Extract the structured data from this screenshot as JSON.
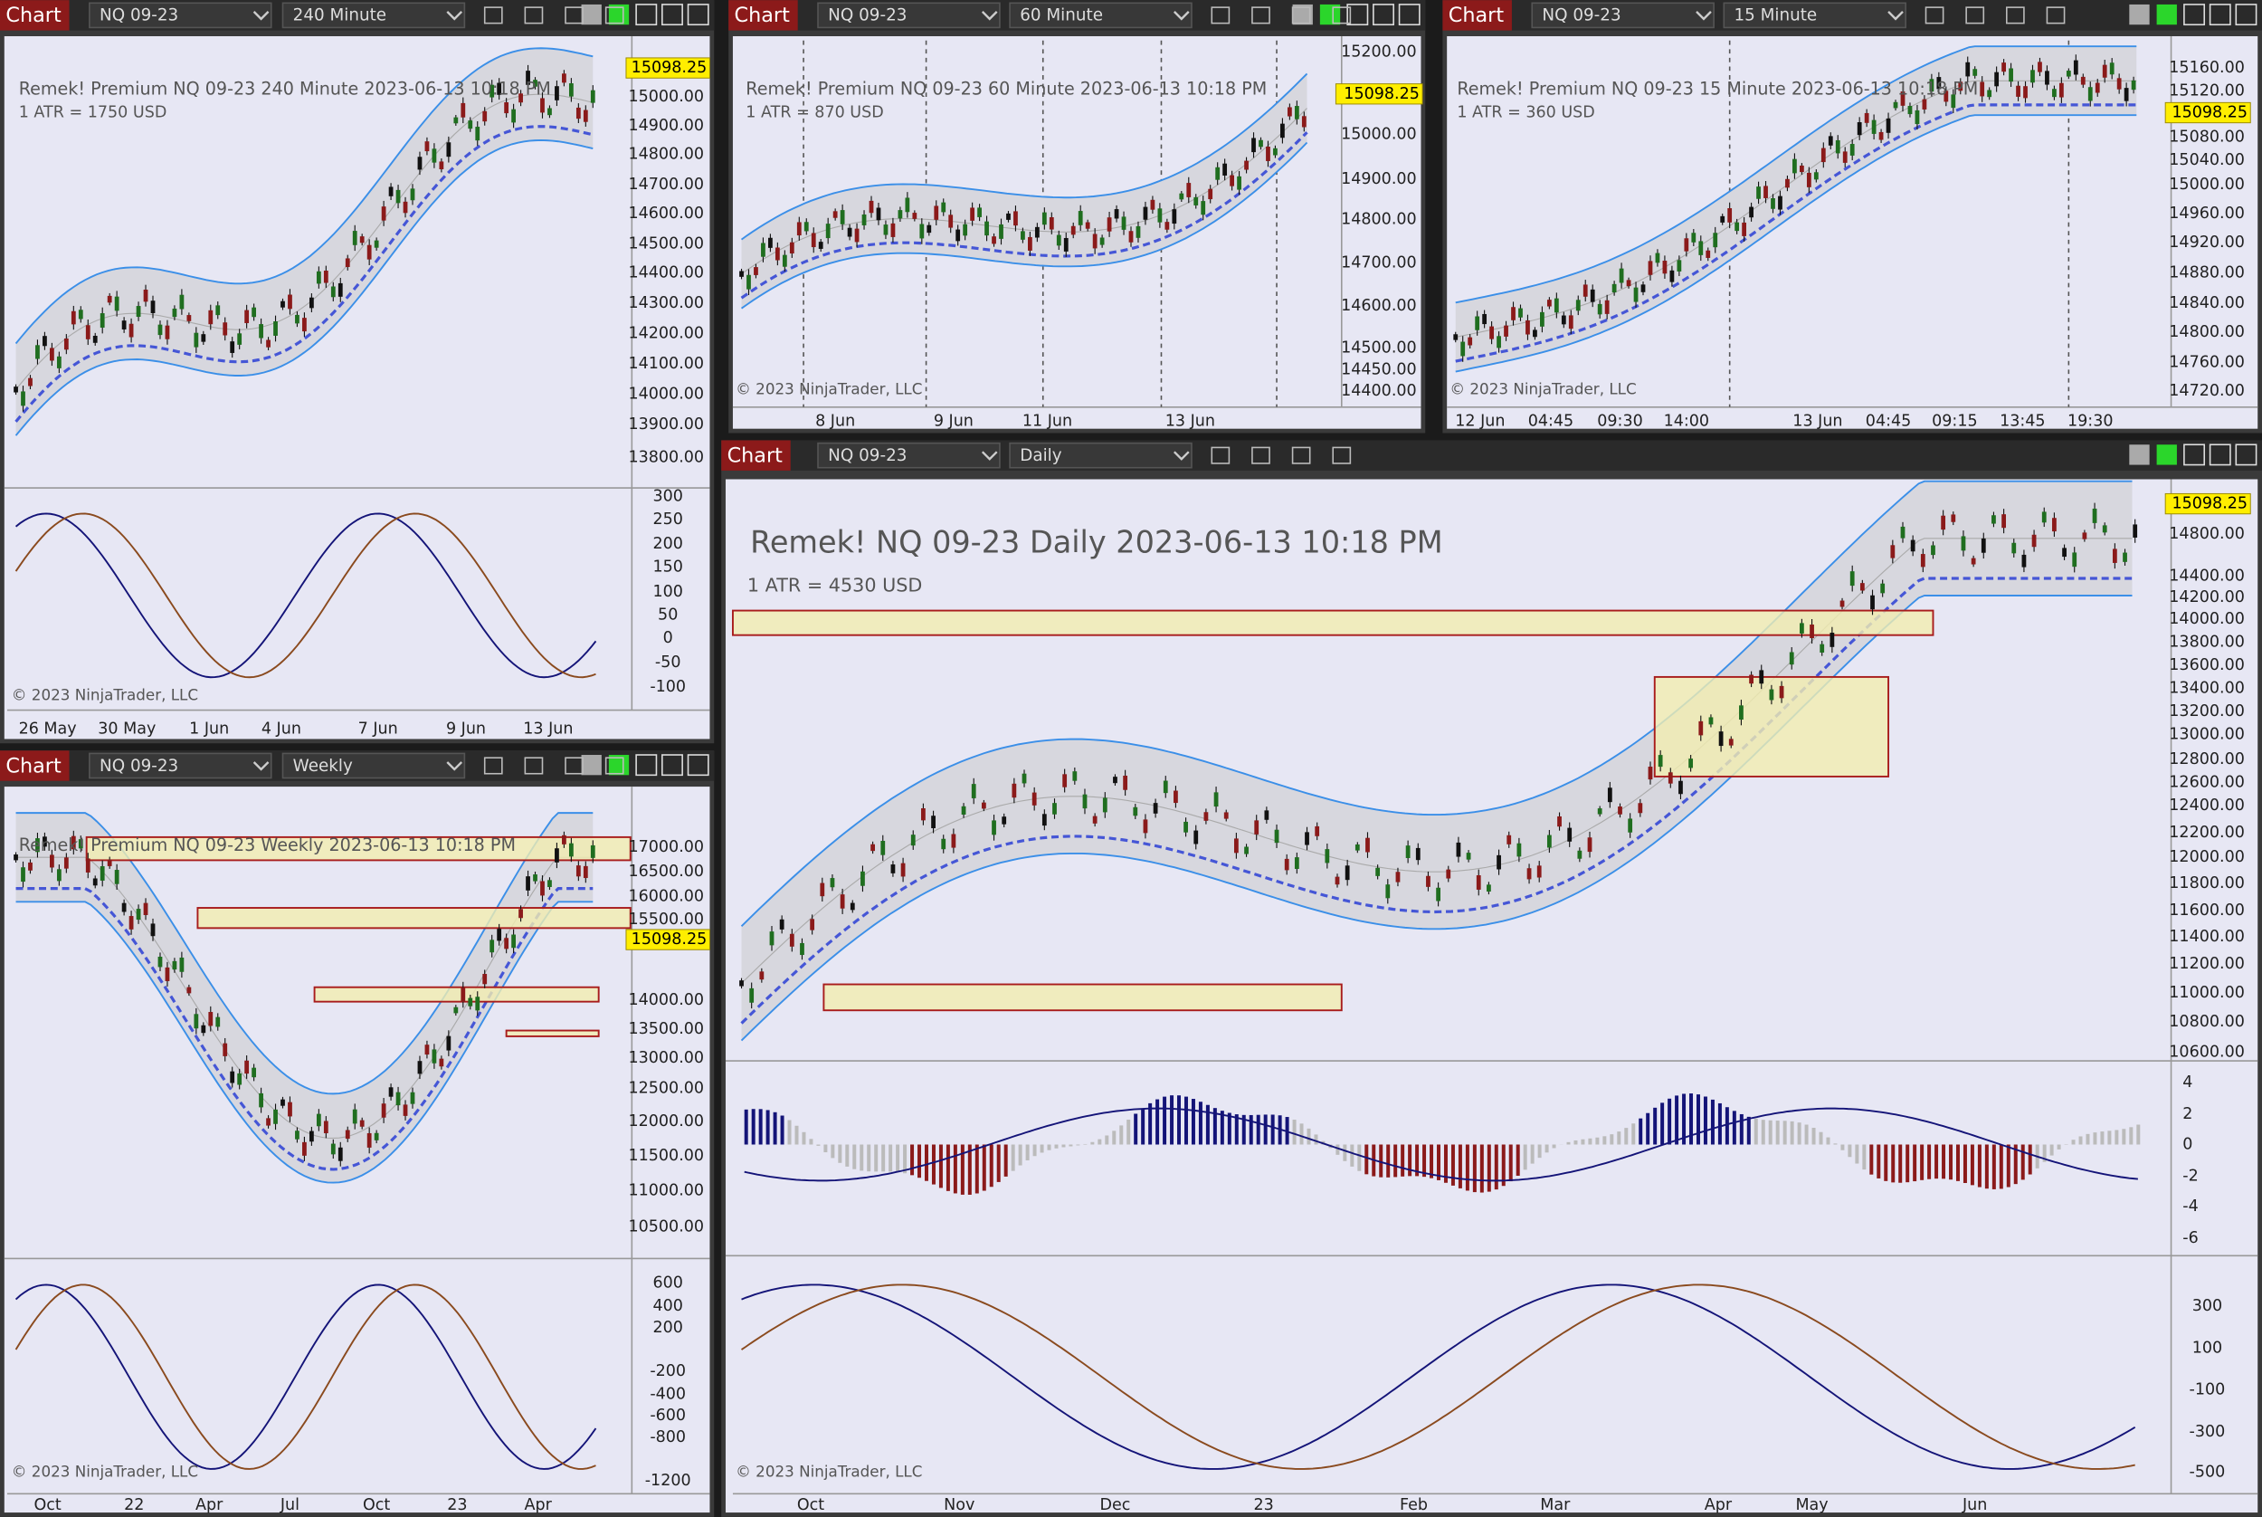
{
  "panels": [
    {
      "tab": "Chart",
      "instrument": "NQ 09-23",
      "timeframe": "240 Minute",
      "header": "Remek!  Premium  NQ 09-23  240 Minute  2023-06-13 10:18 PM",
      "atr": "1 ATR = 1750 USD",
      "last_price": "15098.25",
      "price_labels": [
        "15000.00",
        "14900.00",
        "14800.00",
        "14700.00",
        "14600.00",
        "14500.00",
        "14400.00",
        "14300.00",
        "14200.00",
        "14100.00",
        "14000.00",
        "13900.00",
        "13800.00"
      ],
      "osc_labels": [
        "300",
        "250",
        "200",
        "150",
        "100",
        "50",
        "0",
        "-50",
        "-100"
      ],
      "time_labels": [
        "26 May",
        "30 May",
        "1 Jun",
        "4 Jun",
        "7 Jun",
        "9 Jun",
        "13 Jun"
      ],
      "copyright": "© 2023 NinjaTrader, LLC"
    },
    {
      "tab": "Chart",
      "instrument": "NQ 09-23",
      "timeframe": "60 Minute",
      "header": "Remek!  Premium  NQ 09-23  60 Minute  2023-06-13 10:18 PM",
      "atr": "1 ATR = 870 USD",
      "last_price": "15098.25",
      "price_labels": [
        "15200.00",
        "15000.00",
        "14900.00",
        "14800.00",
        "14700.00",
        "14600.00",
        "14500.00",
        "14450.00",
        "14400.00"
      ],
      "time_labels": [
        "8 Jun",
        "9 Jun",
        "11 Jun",
        "13 Jun"
      ],
      "copyright": "© 2023 NinjaTrader, LLC"
    },
    {
      "tab": "Chart",
      "instrument": "NQ 09-23",
      "timeframe": "15 Minute",
      "header": "Remek!  Premium  NQ 09-23  15 Minute  2023-06-13 10:18 PM",
      "atr": "1 ATR = 360 USD",
      "last_price": "15098.25",
      "price_labels": [
        "15160.00",
        "15120.00",
        "15080.00",
        "15040.00",
        "15000.00",
        "14960.00",
        "14920.00",
        "14880.00",
        "14840.00",
        "14800.00",
        "14760.00",
        "14720.00"
      ],
      "time_labels": [
        "12 Jun",
        "04:45",
        "09:30",
        "14:00",
        "13 Jun",
        "04:45",
        "09:15",
        "13:45",
        "19:30"
      ],
      "copyright": "© 2023 NinjaTrader, LLC"
    },
    {
      "tab": "Chart",
      "instrument": "NQ 09-23",
      "timeframe": "Weekly",
      "header": "Remek!  Premium  NQ 09-23  Weekly  2023-06-13 10:18 PM",
      "last_price": "15098.25",
      "price_labels": [
        "17000.00",
        "16500.00",
        "16000.00",
        "15500.00",
        "14000.00",
        "13500.00",
        "13000.00",
        "12500.00",
        "12000.00",
        "11500.00",
        "11000.00",
        "10500.00"
      ],
      "osc_labels": [
        "600",
        "400",
        "200",
        "-200",
        "-400",
        "-600",
        "-800",
        "-1200"
      ],
      "time_labels": [
        "Oct",
        "22",
        "Apr",
        "Jul",
        "Oct",
        "23",
        "Apr"
      ],
      "copyright": "© 2023 NinjaTrader, LLC"
    },
    {
      "tab": "Chart",
      "instrument": "NQ 09-23",
      "timeframe": "Daily",
      "header": "Remek!  NQ 09-23  Daily  2023-06-13 10:18 PM",
      "atr": "1 ATR = 4530 USD",
      "last_price": "15098.25",
      "price_labels": [
        "14800.00",
        "14400.00",
        "14200.00",
        "14000.00",
        "13800.00",
        "13600.00",
        "13400.00",
        "13200.00",
        "13000.00",
        "12800.00",
        "12600.00",
        "12400.00",
        "12200.00",
        "12000.00",
        "11800.00",
        "11600.00",
        "11400.00",
        "11200.00",
        "11000.00",
        "10800.00",
        "10600.00"
      ],
      "macd_labels": [
        "4",
        "2",
        "0",
        "-2",
        "-4",
        "-6"
      ],
      "osc_labels": [
        "300",
        "100",
        "-100",
        "-300",
        "-500"
      ],
      "time_labels": [
        "Oct",
        "Nov",
        "Dec",
        "23",
        "Feb",
        "Mar",
        "Apr",
        "May",
        "Jun"
      ],
      "copyright": "© 2023 NinjaTrader, LLC"
    }
  ]
}
